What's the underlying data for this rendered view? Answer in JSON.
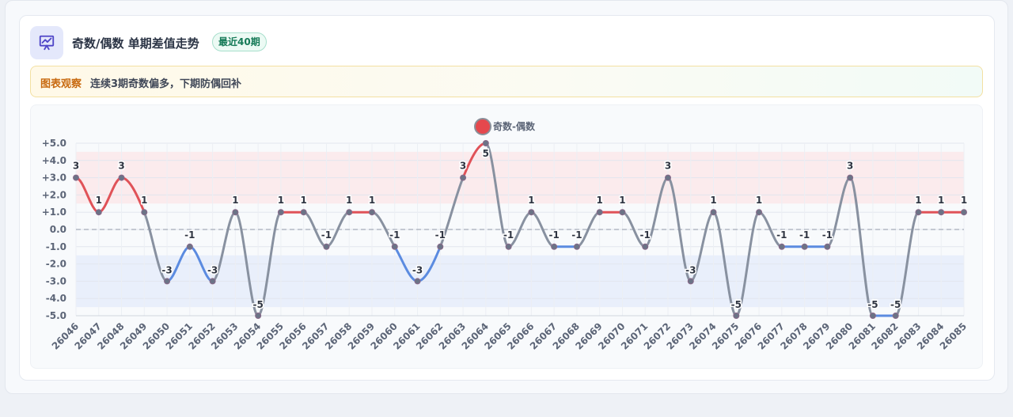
{
  "header": {
    "title": "奇数/偶数 单期差值走势",
    "badge": "最近40期",
    "icon": "chart-presentation-icon"
  },
  "insight": {
    "tag": "图表观察",
    "text": "连续3期奇数偏多，下期防偶回补"
  },
  "colors": {
    "positive": "#e05258",
    "negative": "#5b8be0",
    "neutral": "#8891a0",
    "positive_band": "#fbe7ea",
    "negative_band": "#e6ecfa",
    "legend_dot": "#e5484d"
  },
  "chart_data": {
    "type": "line",
    "title": "",
    "legend": [
      "奇数-偶数"
    ],
    "legend_position": "top-center",
    "xlabel": "",
    "ylabel": "",
    "ylim": [
      -5,
      5
    ],
    "yticks": [
      "+5.0",
      "+4.0",
      "+3.0",
      "+2.0",
      "+1.0",
      "0.0",
      "-1.0",
      "-2.0",
      "-3.0",
      "-4.0",
      "-5.0"
    ],
    "grid": true,
    "bands": [
      {
        "name": "odd-heavy",
        "from": 1.5,
        "to": 4.5
      },
      {
        "name": "even-heavy",
        "from": -4.5,
        "to": -1.5
      }
    ],
    "categories": [
      "26046",
      "26047",
      "26048",
      "26049",
      "26050",
      "26051",
      "26052",
      "26053",
      "26054",
      "26055",
      "26056",
      "26057",
      "26058",
      "26059",
      "26060",
      "26061",
      "26062",
      "26063",
      "26064",
      "26065",
      "26066",
      "26067",
      "26068",
      "26069",
      "26070",
      "26071",
      "26072",
      "26073",
      "26074",
      "26075",
      "26076",
      "26077",
      "26078",
      "26079",
      "26080",
      "26081",
      "26082",
      "26083",
      "26084",
      "26085"
    ],
    "series": [
      {
        "name": "奇数-偶数",
        "values": [
          3,
          1,
          3,
          1,
          -3,
          -1,
          -3,
          1,
          -5,
          1,
          1,
          -1,
          1,
          1,
          -1,
          -3,
          -1,
          3,
          5,
          -1,
          1,
          -1,
          -1,
          1,
          1,
          -1,
          3,
          -3,
          1,
          -5,
          1,
          -1,
          -1,
          -1,
          3,
          -5,
          -5,
          1,
          1,
          1
        ],
        "data_labels": [
          "3",
          "1",
          "3",
          "1",
          "-3",
          "-1",
          "-3",
          "1",
          "-5",
          "1",
          "1",
          "-1",
          "1",
          "1",
          "-1",
          "-3",
          "-1",
          "3",
          "5",
          "-1",
          "1",
          "-1",
          "-1",
          "1",
          "1",
          "-1",
          "3",
          "-3",
          "1",
          "-5",
          "1",
          "-1",
          "-1",
          "-1",
          "3",
          "-5",
          "-5",
          "1",
          "1",
          "1"
        ]
      }
    ]
  }
}
